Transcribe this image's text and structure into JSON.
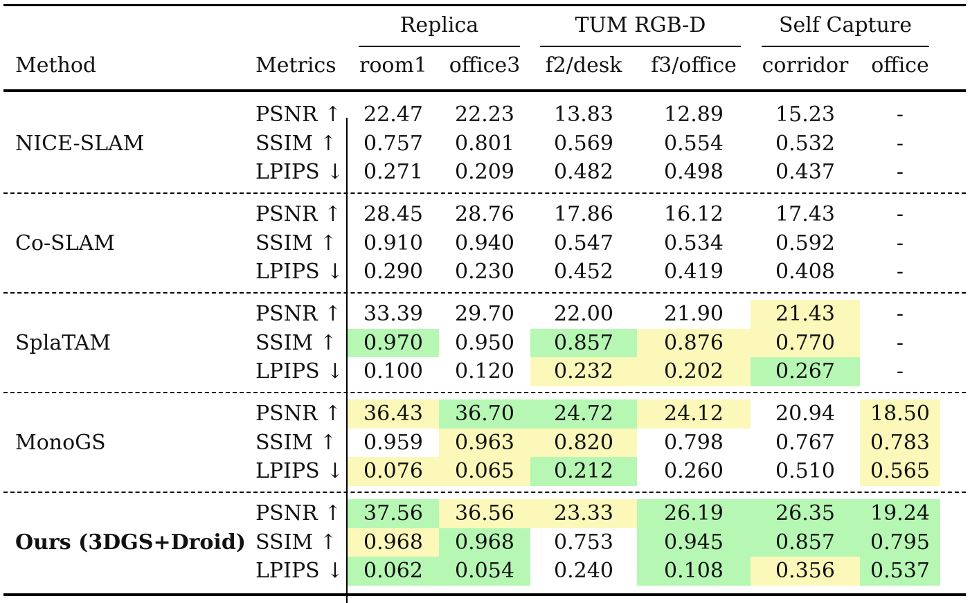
{
  "colors": {
    "best": "#b7f7b4",
    "second": "#fbf8b9"
  },
  "header": {
    "groups": [
      {
        "label": "Replica"
      },
      {
        "label": "TUM RGB-D"
      },
      {
        "label": "Self Capture"
      }
    ],
    "method_label": "Method",
    "metrics_label": "Metrics",
    "scenes": [
      "room1",
      "office3",
      "f2/desk",
      "f3/office",
      "corridor",
      "office"
    ]
  },
  "metrics": [
    "PSNR ↑",
    "SSIM ↑",
    "LPIPS ↓"
  ],
  "methods": [
    {
      "name": "NICE-SLAM",
      "bold": false,
      "values": [
        [
          "22.47",
          "22.23",
          "13.83",
          "12.89",
          "15.23",
          "-"
        ],
        [
          "0.757",
          "0.801",
          "0.569",
          "0.554",
          "0.532",
          "-"
        ],
        [
          "0.271",
          "0.209",
          "0.482",
          "0.498",
          "0.437",
          "-"
        ]
      ],
      "highlights": [
        [
          "",
          "",
          "",
          "",
          "",
          ""
        ],
        [
          "",
          "",
          "",
          "",
          "",
          ""
        ],
        [
          "",
          "",
          "",
          "",
          "",
          ""
        ]
      ]
    },
    {
      "name": "Co-SLAM",
      "bold": false,
      "values": [
        [
          "28.45",
          "28.76",
          "17.86",
          "16.12",
          "17.43",
          "-"
        ],
        [
          "0.910",
          "0.940",
          "0.547",
          "0.534",
          "0.592",
          "-"
        ],
        [
          "0.290",
          "0.230",
          "0.452",
          "0.419",
          "0.408",
          "-"
        ]
      ],
      "highlights": [
        [
          "",
          "",
          "",
          "",
          "",
          ""
        ],
        [
          "",
          "",
          "",
          "",
          "",
          ""
        ],
        [
          "",
          "",
          "",
          "",
          "",
          ""
        ]
      ]
    },
    {
      "name": "SplaTAM",
      "bold": false,
      "values": [
        [
          "33.39",
          "29.70",
          "22.00",
          "21.90",
          "21.43",
          "-"
        ],
        [
          "0.970",
          "0.950",
          "0.857",
          "0.876",
          "0.770",
          "-"
        ],
        [
          "0.100",
          "0.120",
          "0.232",
          "0.202",
          "0.267",
          "-"
        ]
      ],
      "highlights": [
        [
          "",
          "",
          "",
          "",
          "second",
          ""
        ],
        [
          "best",
          "",
          "best",
          "second",
          "second",
          ""
        ],
        [
          "",
          "",
          "second",
          "second",
          "best",
          ""
        ]
      ]
    },
    {
      "name": "MonoGS",
      "bold": false,
      "values": [
        [
          "36.43",
          "36.70",
          "24.72",
          "24.12",
          "20.94",
          "18.50"
        ],
        [
          "0.959",
          "0.963",
          "0.820",
          "0.798",
          "0.767",
          "0.783"
        ],
        [
          "0.076",
          "0.065",
          "0.212",
          "0.260",
          "0.510",
          "0.565"
        ]
      ],
      "highlights": [
        [
          "second",
          "best",
          "best",
          "second",
          "",
          "second"
        ],
        [
          "",
          "second",
          "second",
          "",
          "",
          "second"
        ],
        [
          "second",
          "second",
          "best",
          "",
          "",
          "second"
        ]
      ]
    },
    {
      "name": "Ours (3DGS+Droid)",
      "bold": true,
      "values": [
        [
          "37.56",
          "36.56",
          "23.33",
          "26.19",
          "26.35",
          "19.24"
        ],
        [
          "0.968",
          "0.968",
          "0.753",
          "0.945",
          "0.857",
          "0.795"
        ],
        [
          "0.062",
          "0.054",
          "0.240",
          "0.108",
          "0.356",
          "0.537"
        ]
      ],
      "highlights": [
        [
          "best",
          "second",
          "second",
          "best",
          "best",
          "best"
        ],
        [
          "second",
          "best",
          "",
          "best",
          "best",
          "best"
        ],
        [
          "best",
          "best",
          "",
          "best",
          "second",
          "best"
        ]
      ]
    }
  ]
}
